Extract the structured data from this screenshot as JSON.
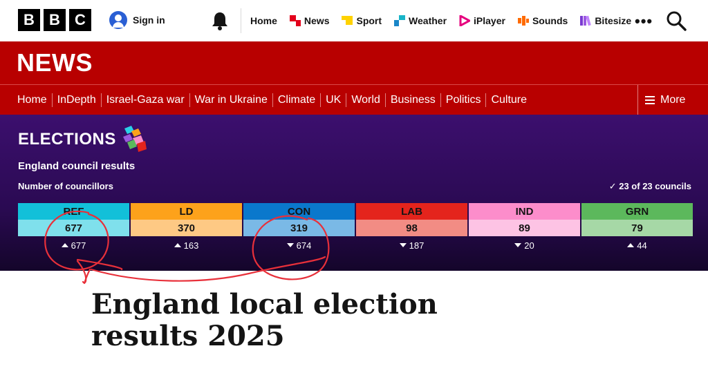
{
  "header": {
    "logo_letters": [
      "B",
      "B",
      "C"
    ],
    "signin_label": "Sign in",
    "nav": [
      {
        "label": "Home",
        "icon": "none",
        "color": ""
      },
      {
        "label": "News",
        "icon": "news-icon",
        "color": "#e3001b"
      },
      {
        "label": "Sport",
        "icon": "sport-icon",
        "color": "#ffd200"
      },
      {
        "label": "Weather",
        "icon": "weather-icon",
        "color": "#1a86c8"
      },
      {
        "label": "iPlayer",
        "icon": "iplayer-icon",
        "color": "#e6007e"
      },
      {
        "label": "Sounds",
        "icon": "sounds-icon",
        "color": "#ff6b00"
      },
      {
        "label": "Bitesize",
        "icon": "bitesize-icon",
        "color": "#7a3ad2"
      }
    ],
    "more_dots": "•••"
  },
  "news": {
    "title": "NEWS",
    "nav": [
      "Home",
      "InDepth",
      "Israel-Gaza war",
      "War in Ukraine",
      "Climate",
      "UK",
      "World",
      "Business",
      "Politics",
      "Culture"
    ],
    "more_label": "More"
  },
  "elections": {
    "title": "ELECTIONS",
    "subtitle": "England council results",
    "label": "Number of councillors",
    "count": "23 of 23 councils",
    "parties": [
      {
        "name": "REF",
        "seats": "677",
        "change": "677",
        "direction": "up",
        "color": "#12c0d9",
        "light": "#7fe0ec"
      },
      {
        "name": "LD",
        "seats": "370",
        "change": "163",
        "direction": "up",
        "color": "#fda21b",
        "light": "#fec984"
      },
      {
        "name": "CON",
        "seats": "319",
        "change": "674",
        "direction": "down",
        "color": "#0a78cc",
        "light": "#7ab9e6"
      },
      {
        "name": "LAB",
        "seats": "98",
        "change": "187",
        "direction": "down",
        "color": "#e4241c",
        "light": "#f28c84"
      },
      {
        "name": "IND",
        "seats": "89",
        "change": "20",
        "direction": "down",
        "color": "#fc8dcb",
        "light": "#fdc3e4"
      },
      {
        "name": "GRN",
        "seats": "79",
        "change": "44",
        "direction": "up",
        "color": "#5cb85c",
        "light": "#a6d8a6"
      }
    ]
  },
  "article": {
    "headline": "England local election results 2025"
  }
}
